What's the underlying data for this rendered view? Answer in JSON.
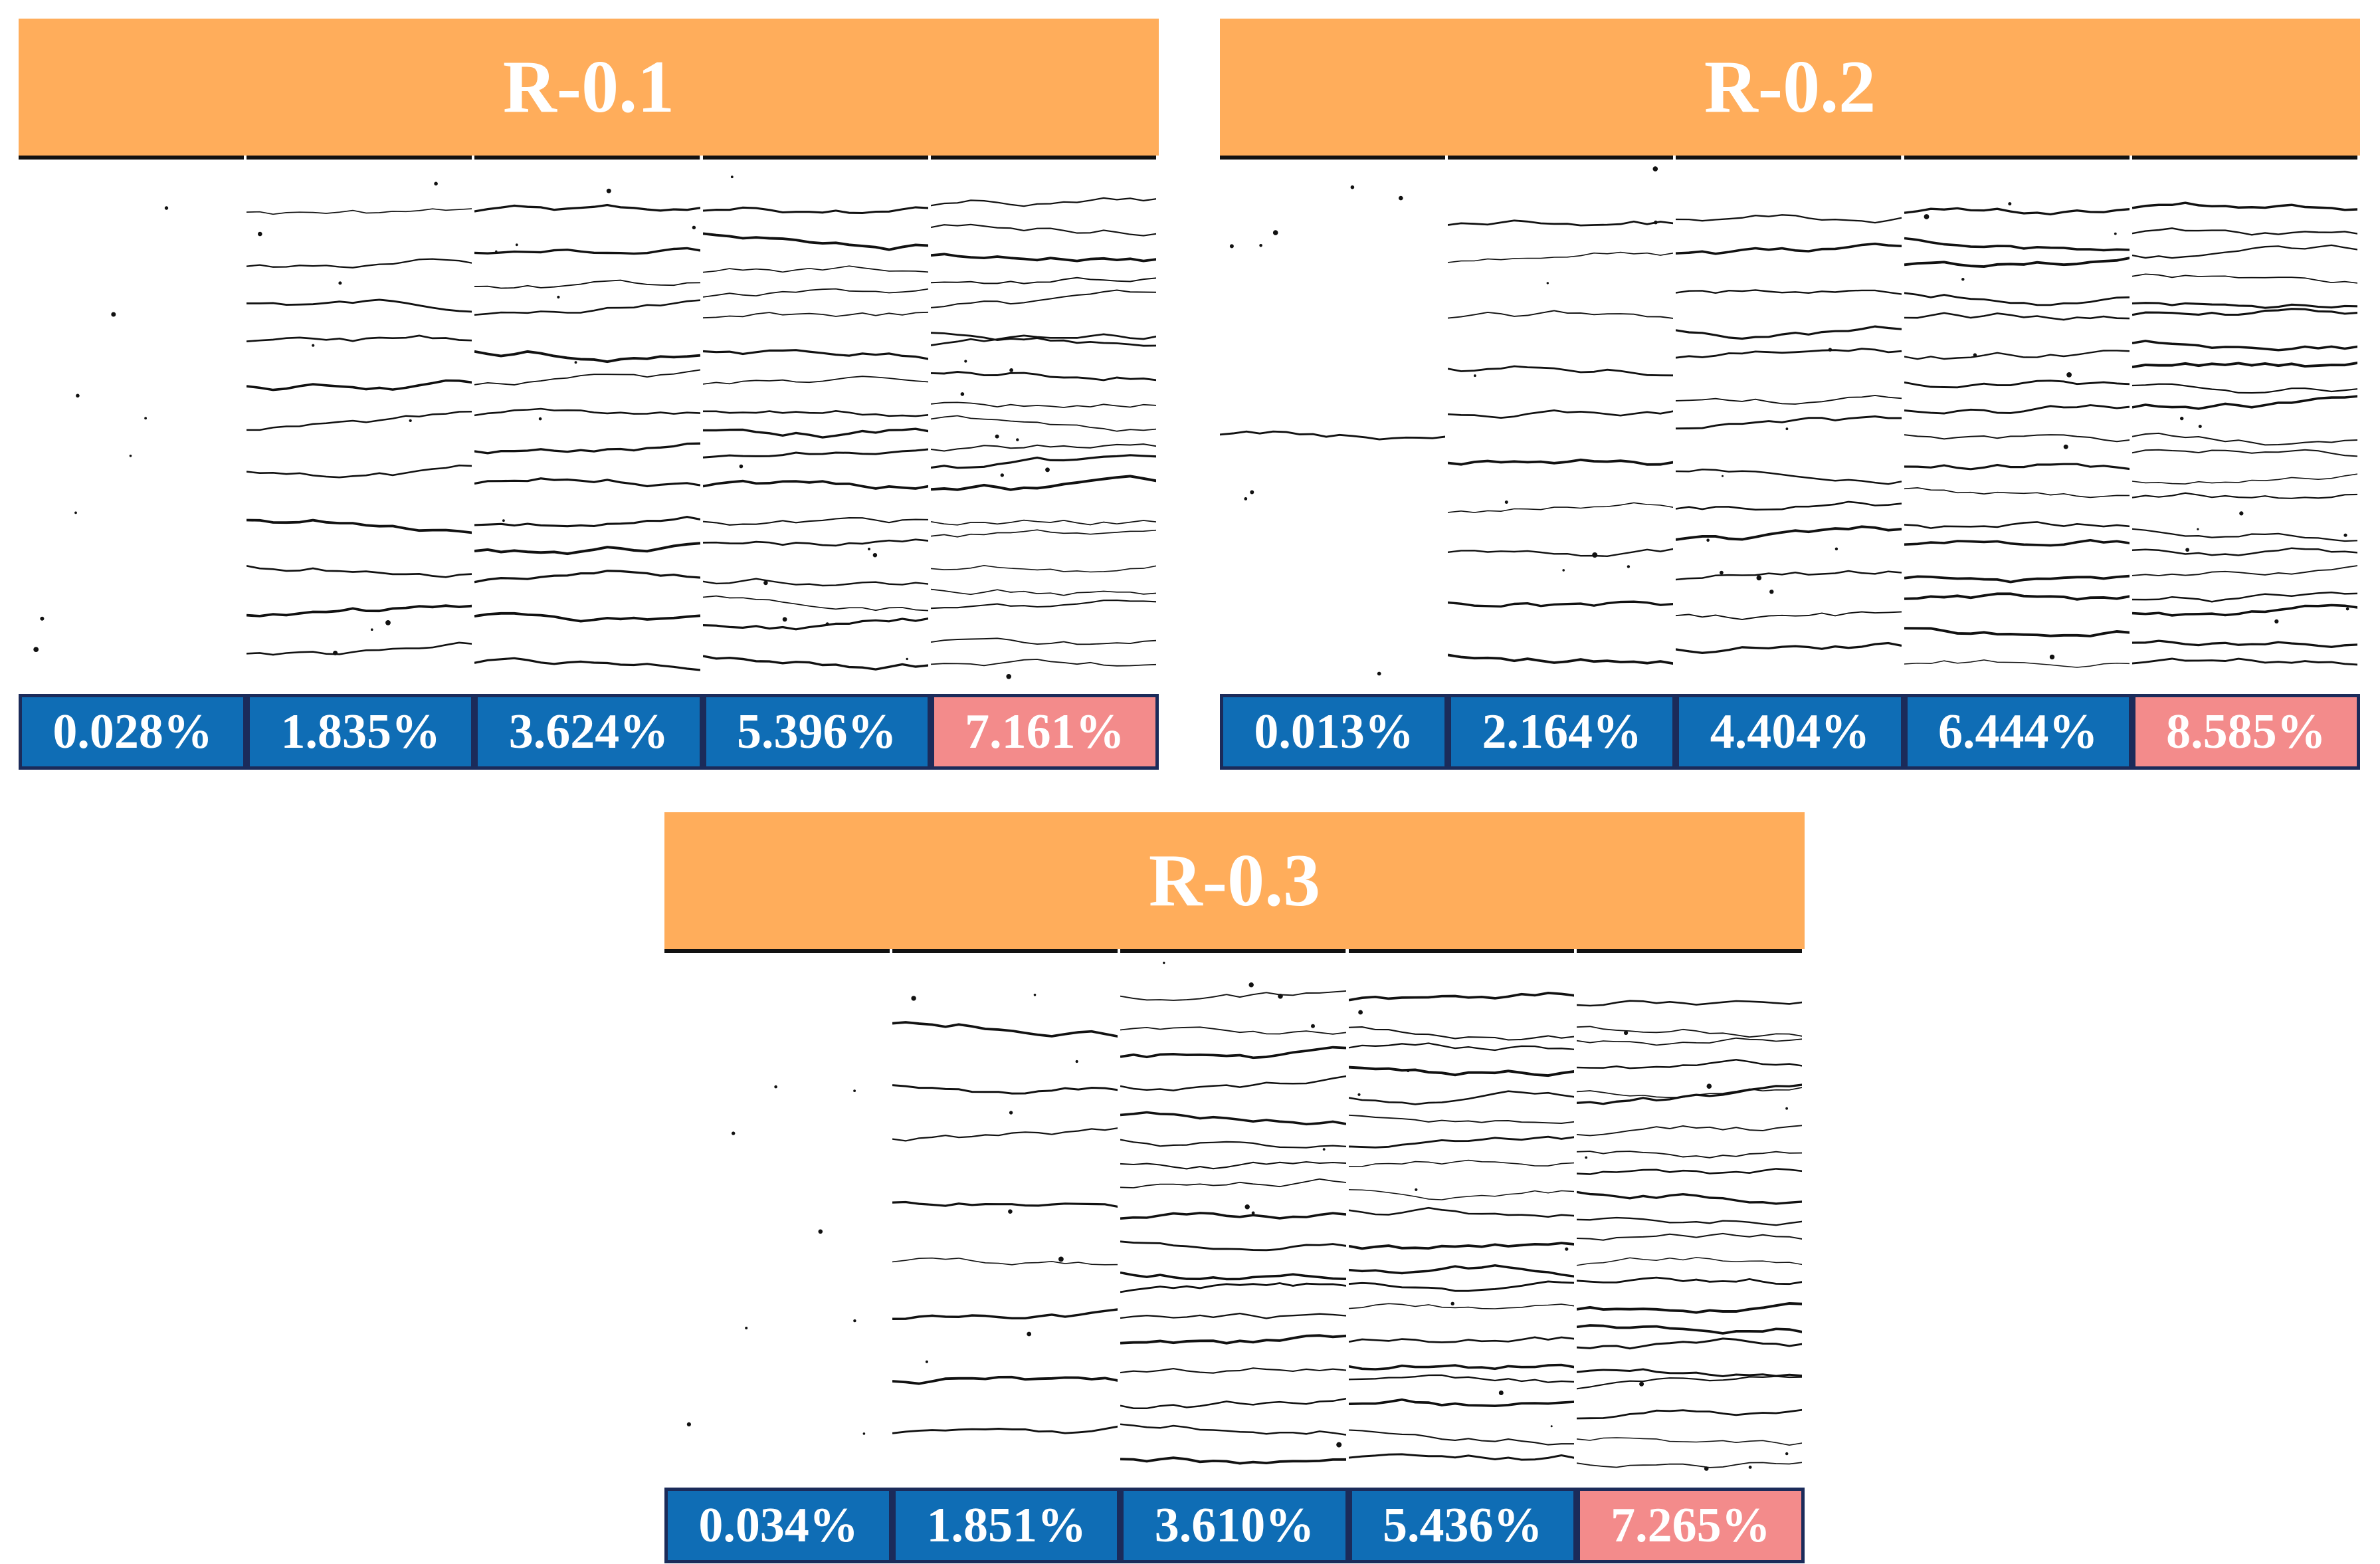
{
  "panels": [
    {
      "title": "R-0.1",
      "specimens": [
        {
          "strain": "0.028%",
          "highlight": false,
          "crack_count": 0
        },
        {
          "strain": "1.835%",
          "highlight": false,
          "crack_count": 11
        },
        {
          "strain": "3.624%",
          "highlight": false,
          "crack_count": 14
        },
        {
          "strain": "5.396%",
          "highlight": false,
          "crack_count": 17
        },
        {
          "strain": "7.161%",
          "highlight": true,
          "crack_count": 20
        }
      ]
    },
    {
      "title": "R-0.2",
      "specimens": [
        {
          "strain": "0.013%",
          "highlight": false,
          "crack_count": 1
        },
        {
          "strain": "2.164%",
          "highlight": false,
          "crack_count": 10
        },
        {
          "strain": "4.404%",
          "highlight": false,
          "crack_count": 13
        },
        {
          "strain": "6.444%",
          "highlight": false,
          "crack_count": 17
        },
        {
          "strain": "8.585%",
          "highlight": true,
          "crack_count": 21
        }
      ]
    },
    {
      "title": "R-0.3",
      "specimens": [
        {
          "strain": "0.034%",
          "highlight": false,
          "crack_count": 0
        },
        {
          "strain": "1.851%",
          "highlight": false,
          "crack_count": 8
        },
        {
          "strain": "3.610%",
          "highlight": false,
          "crack_count": 18
        },
        {
          "strain": "5.436%",
          "highlight": false,
          "crack_count": 20
        },
        {
          "strain": "7.265%",
          "highlight": true,
          "crack_count": 22
        }
      ]
    }
  ],
  "colors": {
    "title_bar": "#ffad5b",
    "label_fill": "#0f6db5",
    "label_highlight": "#f38b8b",
    "label_border": "#1b2b5a",
    "crack": "#111111"
  }
}
